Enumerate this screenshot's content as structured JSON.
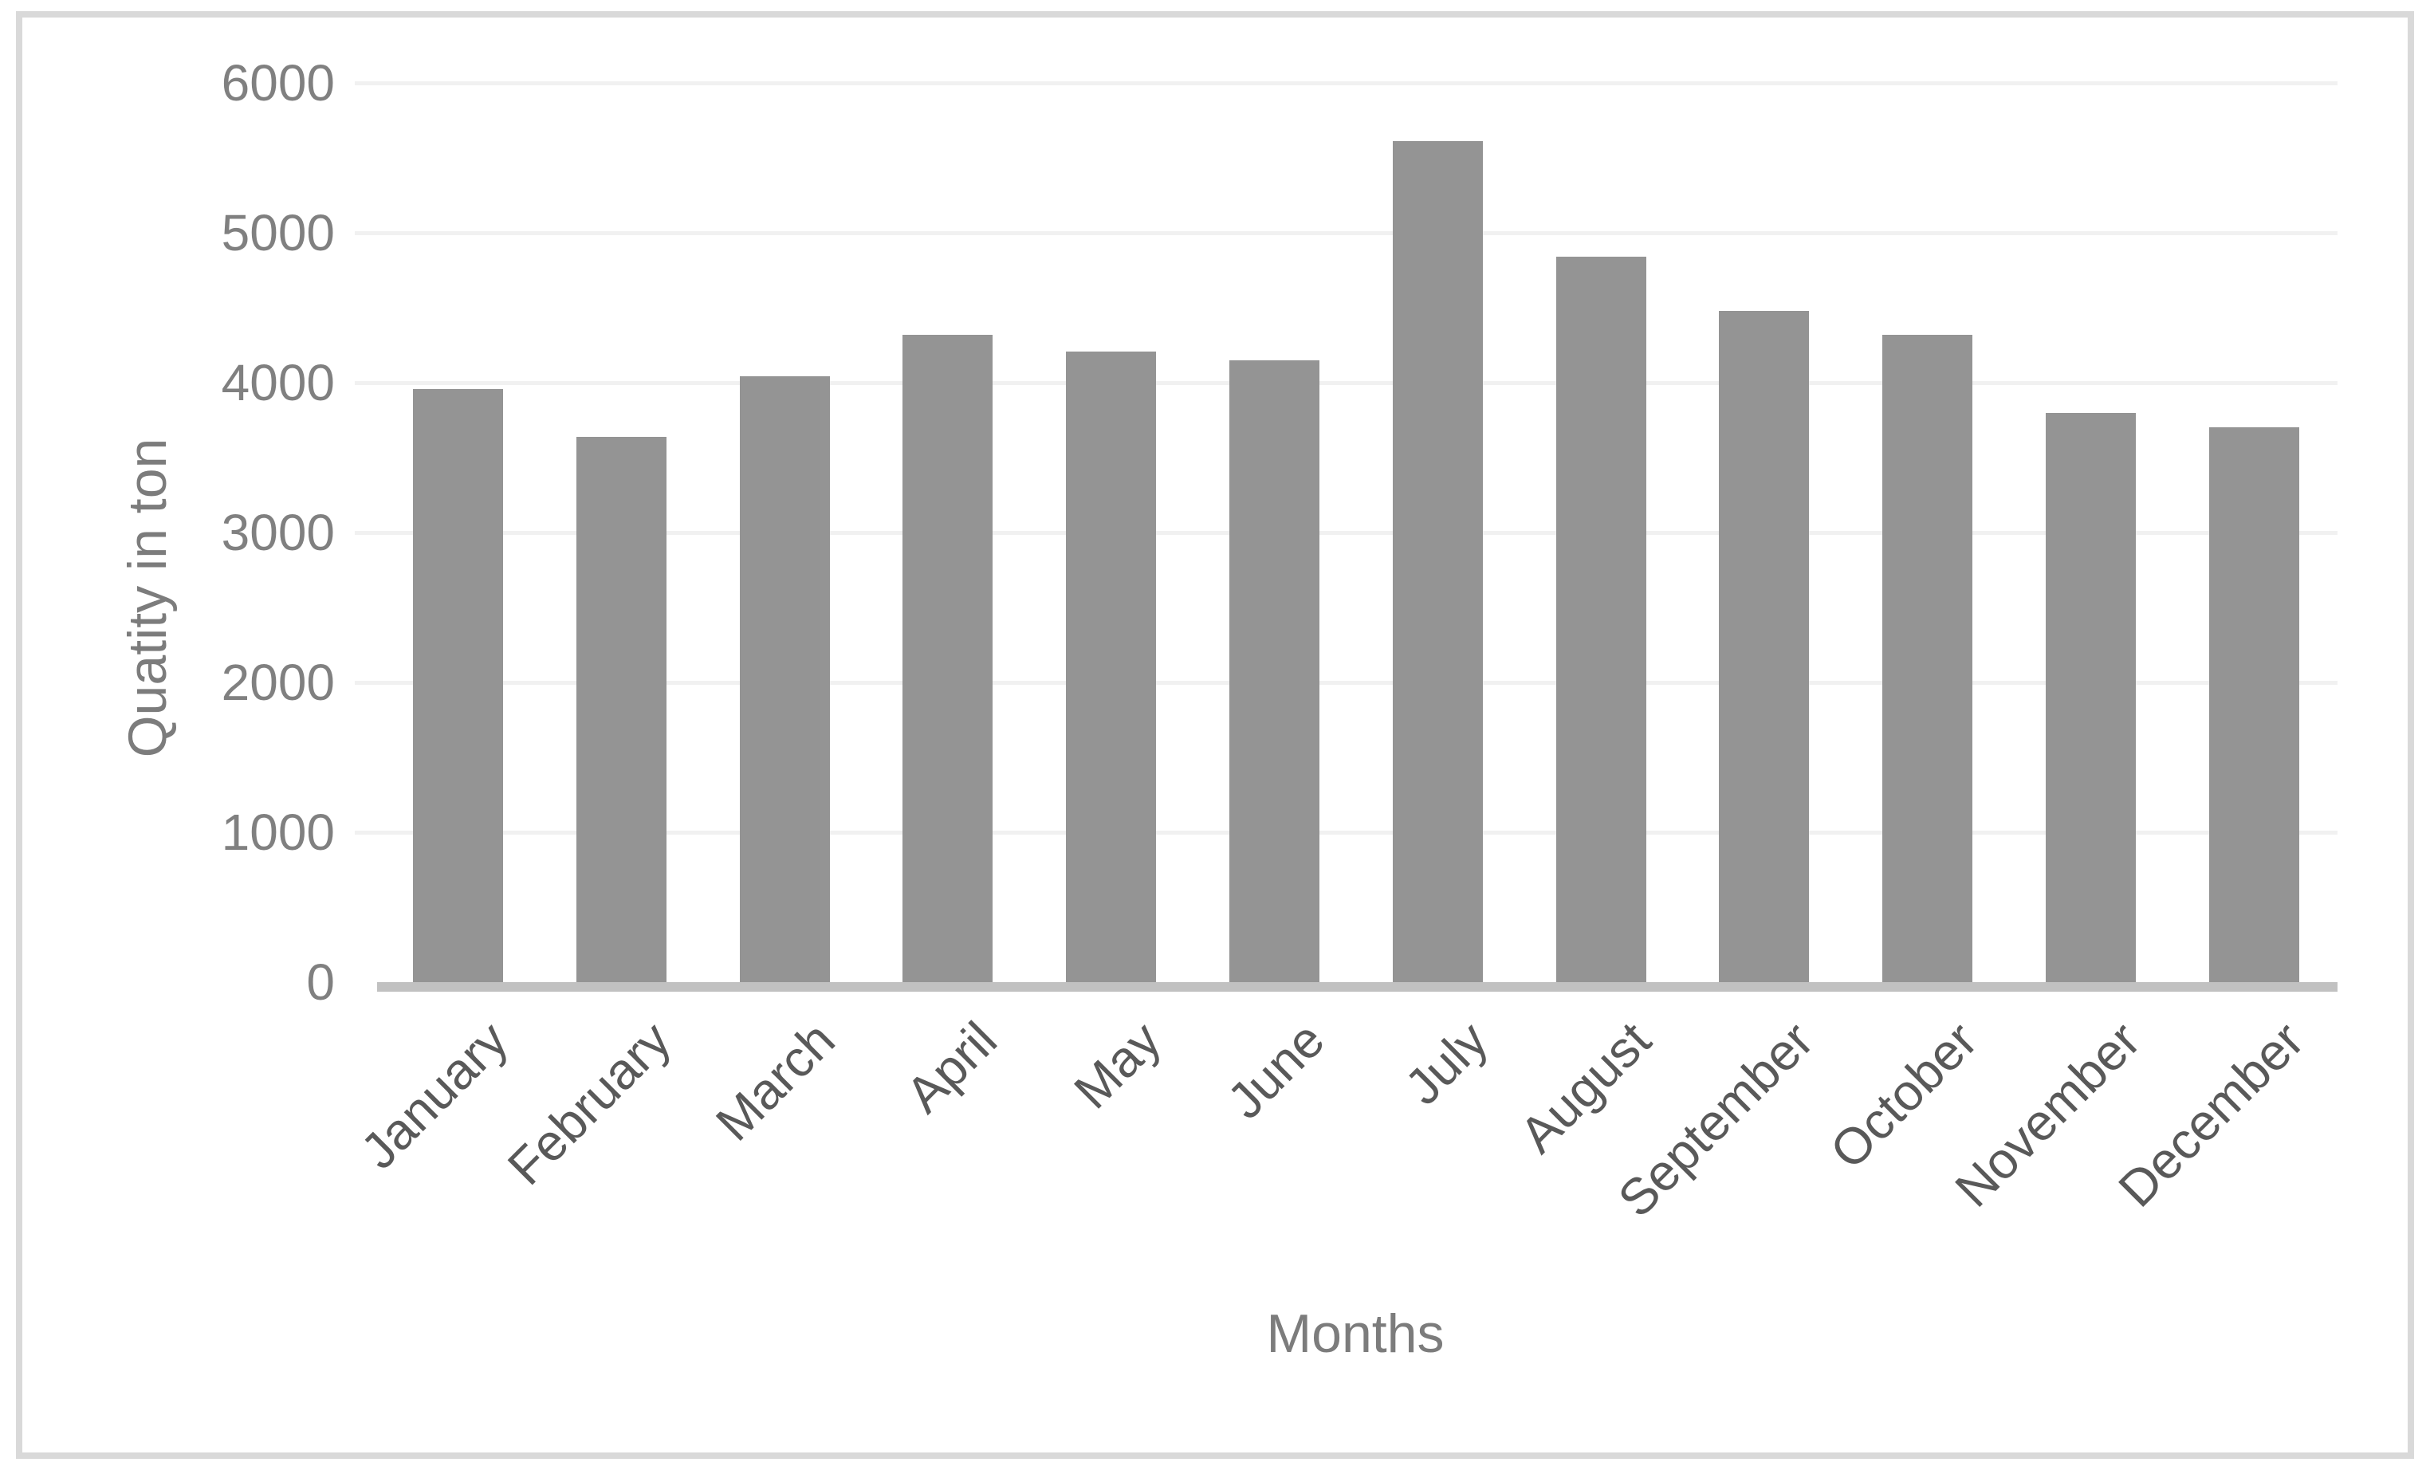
{
  "chart_data": {
    "type": "bar",
    "title": "",
    "xlabel": "Months",
    "ylabel": "Quatity in ton",
    "categories": [
      "January",
      "February",
      "March",
      "April",
      "May",
      "June",
      "July",
      "August",
      "September",
      "October",
      "November",
      "December"
    ],
    "values": [
      3960,
      3640,
      4040,
      4320,
      4210,
      4150,
      5610,
      4840,
      4480,
      4320,
      3800,
      3700
    ],
    "ylim": [
      0,
      6000
    ],
    "yticks": [
      0,
      1000,
      2000,
      3000,
      4000,
      5000,
      6000
    ],
    "grid": "horizontal",
    "legend": "none",
    "bar_color": "#949494"
  },
  "colors": {
    "bar": "#949494",
    "axis_line": "#c1c1c1",
    "gridline": "#f1f1f1",
    "frame_border": "#d9d9d9",
    "tick_text": "#808080",
    "category_text": "#595959",
    "title_text": "#7c7c7c",
    "background": "#ffffff"
  }
}
